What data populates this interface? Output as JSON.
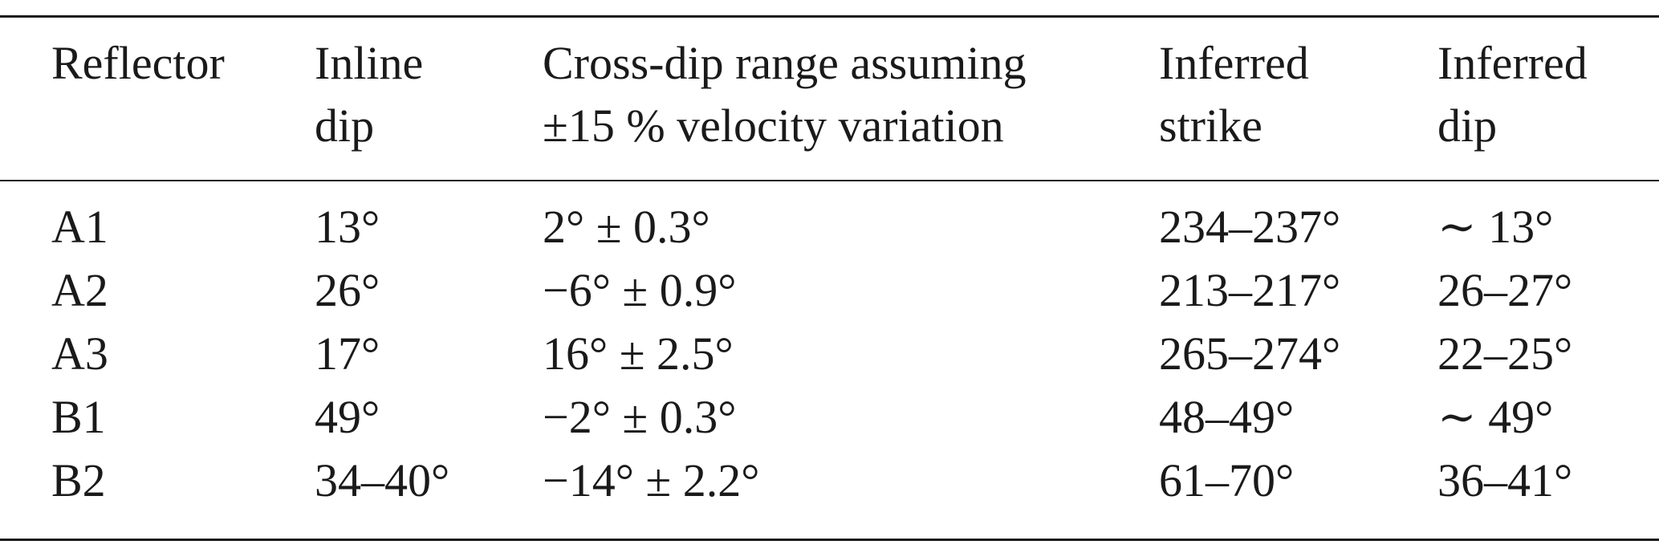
{
  "table": {
    "headers": [
      [
        "Reflector"
      ],
      [
        "Inline",
        "dip"
      ],
      [
        "Cross-dip range assuming",
        "±15 % velocity variation"
      ],
      [
        "Inferred",
        "strike"
      ],
      [
        "Inferred",
        "dip"
      ]
    ],
    "rows": [
      [
        "A1",
        "13°",
        "2° ± 0.3°",
        "234–237°",
        "∼ 13°"
      ],
      [
        "A2",
        "26°",
        "−6° ± 0.9°",
        "213–217°",
        "26–27°"
      ],
      [
        "A3",
        "17°",
        "16° ± 2.5°",
        "265–274°",
        "22–25°"
      ],
      [
        "B1",
        "49°",
        "−2° ± 0.3°",
        "48–49°",
        "∼ 49°"
      ],
      [
        "B2",
        "34–40°",
        "−14° ± 2.2°",
        "61–70°",
        "36–41°"
      ]
    ]
  }
}
